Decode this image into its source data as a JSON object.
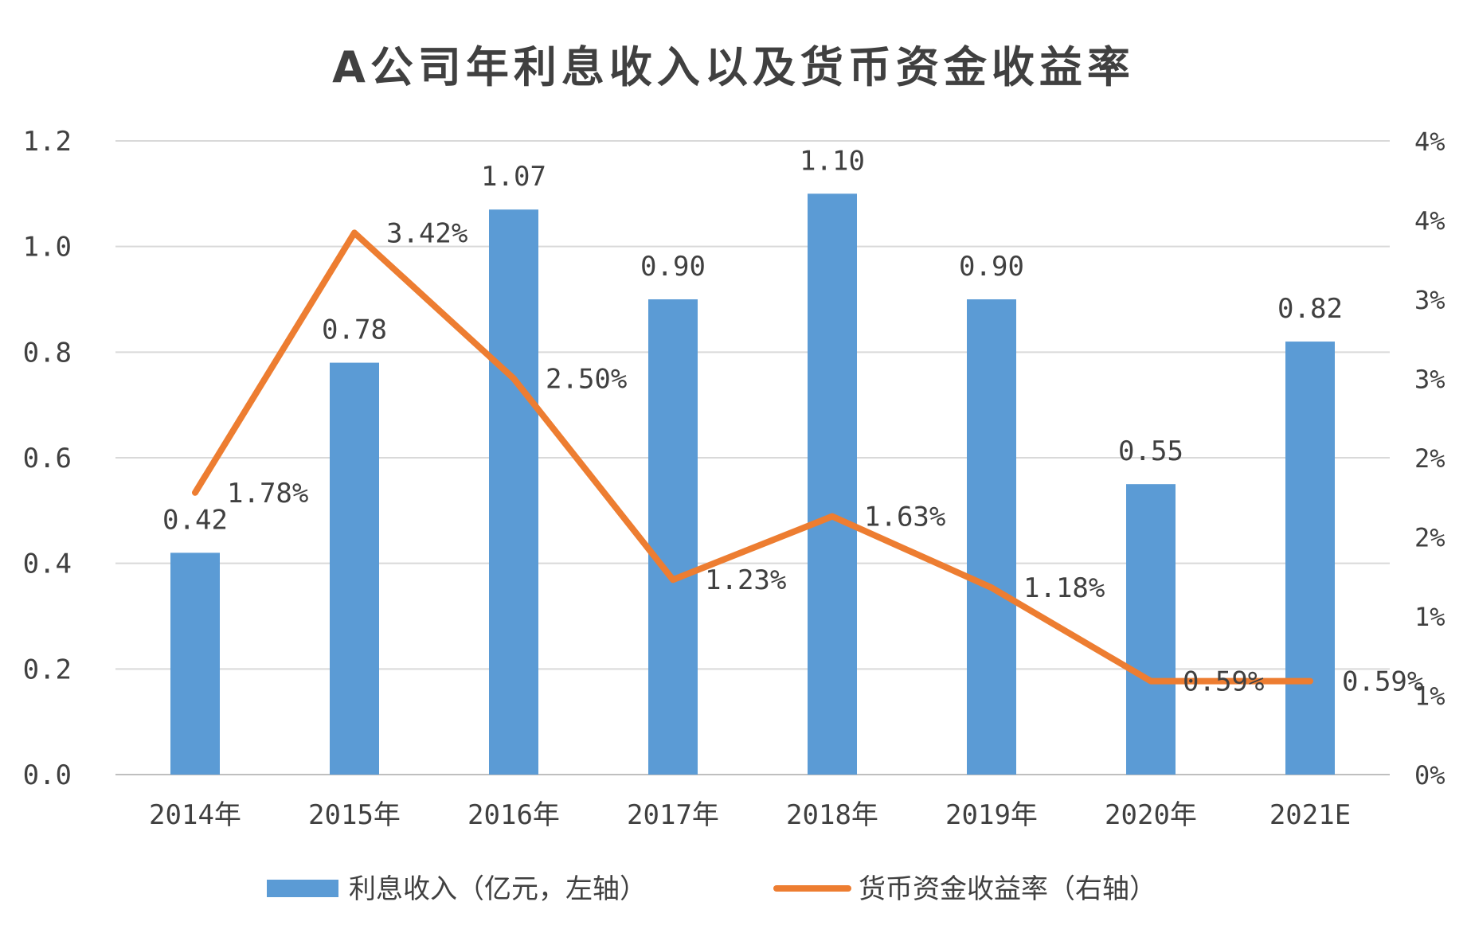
{
  "chart_data": {
    "type": "bar",
    "title": "A公司年利息收入以及货币资金收益率",
    "categories": [
      "2014年",
      "2015年",
      "2016年",
      "2017年",
      "2018年",
      "2019年",
      "2020年",
      "2021E"
    ],
    "series": [
      {
        "name": "利息收入（亿元，左轴）",
        "type": "bar",
        "axis": "left",
        "color": "#5B9BD5",
        "values": [
          0.42,
          0.78,
          1.07,
          0.9,
          1.1,
          0.9,
          0.55,
          0.82
        ],
        "labels": [
          "0.42",
          "0.78",
          "1.07",
          "0.90",
          "1.10",
          "0.90",
          "0.55",
          "0.82"
        ]
      },
      {
        "name": "货币资金收益率（右轴）",
        "type": "line",
        "axis": "right",
        "color": "#ED7D31",
        "values": [
          1.78,
          3.42,
          2.5,
          1.23,
          1.63,
          1.18,
          0.59,
          0.59
        ],
        "labels": [
          "1.78%",
          "3.42%",
          "2.50%",
          "1.23%",
          "1.63%",
          "1.18%",
          "0.59%",
          "0.59%"
        ]
      }
    ],
    "y_left": {
      "min": 0,
      "max": 1.2,
      "ticks": [
        0.0,
        0.2,
        0.4,
        0.6,
        0.8,
        1.0,
        1.2
      ],
      "tick_labels": [
        "0.0",
        "0.2",
        "0.4",
        "0.6",
        "0.8",
        "1.0",
        "1.2"
      ]
    },
    "y_right": {
      "min": 0,
      "max": 4,
      "ticks": [
        0,
        0.5,
        1,
        1.5,
        2,
        2.5,
        3,
        3.5,
        4
      ],
      "tick_labels": [
        "0%",
        "1%",
        "1%",
        "2%",
        "2%",
        "3%",
        "3%",
        "4%",
        "4%"
      ]
    },
    "grid": true,
    "legend_position": "bottom"
  }
}
